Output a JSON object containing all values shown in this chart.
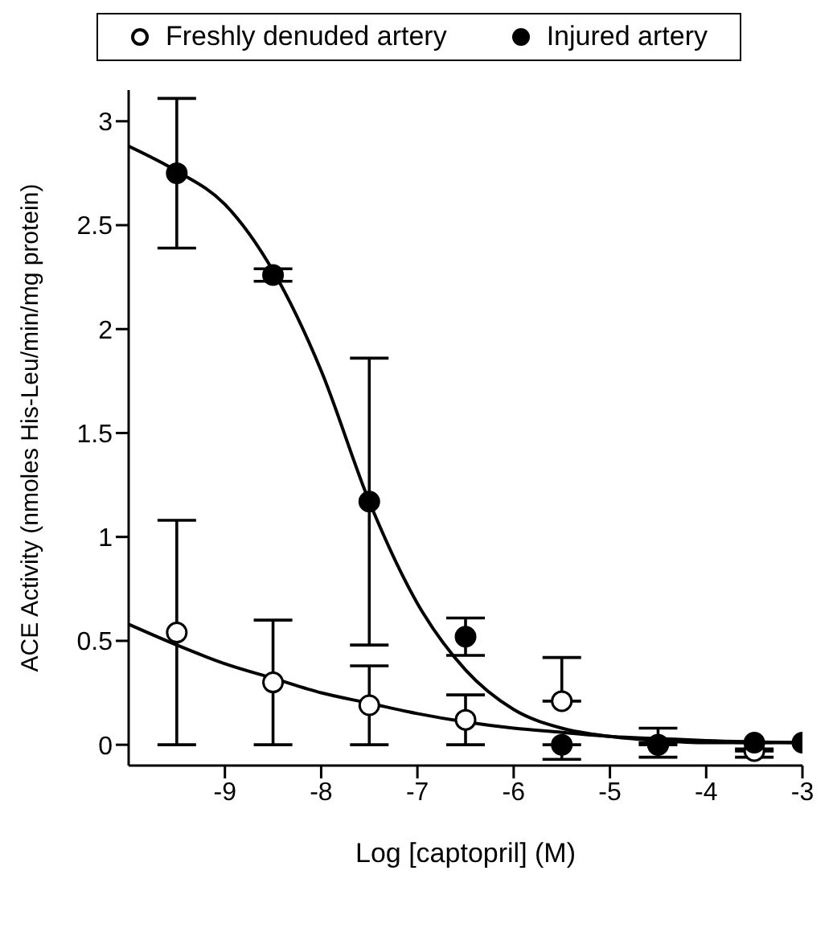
{
  "chart_data": {
    "type": "scatter",
    "xlabel": "Log [captopril] (M)",
    "ylabel": "ACE Activity (nmoles His-Leu/min/mg protein)",
    "xlim": [
      -10,
      -3
    ],
    "xticks": [
      -9,
      -8,
      -7,
      -6,
      -5,
      -4,
      -3
    ],
    "ylim": [
      -0.1,
      3.15
    ],
    "yticks": [
      0,
      0.5,
      1,
      1.5,
      2,
      2.5,
      3
    ],
    "grid": false,
    "legend": "top",
    "x": [
      -9.5,
      -8.5,
      -7.5,
      -6.5,
      -5.5,
      -4.5,
      -3.5,
      -3
    ],
    "series": [
      {
        "name": "Freshly denuded artery",
        "marker": "circle",
        "color": "#ffffff",
        "values": [
          0.54,
          0.3,
          0.19,
          0.12,
          0.21,
          0.0,
          -0.03,
          null
        ],
        "errors": [
          [
            0,
            1.08
          ],
          [
            0,
            0.6
          ],
          [
            0,
            0.38
          ],
          [
            0,
            0.24
          ],
          [
            0.21,
            0.42
          ],
          [
            0,
            0.01
          ],
          [
            -0.06,
            -0.03
          ],
          null
        ]
      },
      {
        "name": "Injured artery",
        "marker": "circle",
        "color": "#000000",
        "values": [
          2.75,
          2.26,
          1.17,
          0.52,
          0.0,
          0.0,
          0.01,
          0.01
        ],
        "errors": [
          [
            2.39,
            3.11
          ],
          [
            2.23,
            2.29
          ],
          [
            0.48,
            1.86
          ],
          [
            0.43,
            0.61
          ],
          [
            -0.07,
            0.0
          ],
          [
            -0.06,
            0.08
          ],
          [
            -0.02,
            0.01
          ],
          null
        ]
      },
      {
        "type": "line",
        "marker": "none",
        "color": "#000000",
        "x": [
          -10,
          -9.5,
          -9,
          -8.5,
          -8,
          -7.5,
          -7,
          -6.5,
          -6,
          -5.5,
          -5,
          -4.5,
          -4,
          -3
        ],
        "values": [
          0.58,
          0.48,
          0.39,
          0.32,
          0.25,
          0.2,
          0.15,
          0.11,
          0.08,
          0.06,
          0.04,
          0.03,
          0.02,
          0.01
        ]
      },
      {
        "type": "line",
        "marker": "none",
        "color": "#000000",
        "x": [
          -10,
          -9.5,
          -9,
          -8.5,
          -8,
          -7.5,
          -7,
          -6.5,
          -6,
          -5.5,
          -5,
          -4.5,
          -4,
          -3
        ],
        "values": [
          2.88,
          2.76,
          2.6,
          2.28,
          1.8,
          1.17,
          0.68,
          0.36,
          0.17,
          0.08,
          0.04,
          0.02,
          0.01,
          0.01
        ]
      }
    ]
  }
}
